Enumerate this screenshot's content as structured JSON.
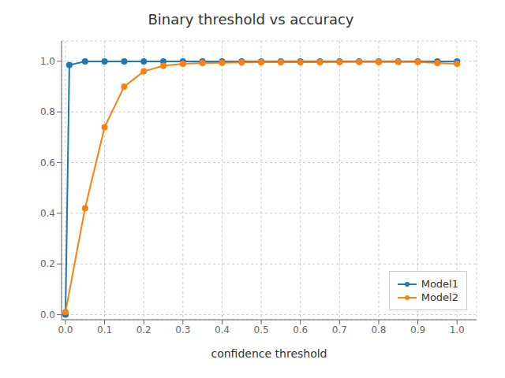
{
  "chart_data": {
    "type": "line",
    "title": "Binary threshold vs accuracy",
    "xlabel": "confidence threshold",
    "series": [
      {
        "name": "Model1",
        "color": "#1f77b4",
        "marker": "circle",
        "x": [
          0.0,
          0.01,
          0.05,
          0.1,
          0.15,
          0.2,
          0.25,
          0.3,
          0.35,
          0.4,
          0.45,
          0.5,
          0.55,
          0.6,
          0.65,
          0.7,
          0.75,
          0.8,
          0.85,
          0.9,
          0.95,
          1.0
        ],
        "values": [
          0.0,
          0.985,
          0.999,
          0.999,
          0.999,
          0.999,
          0.999,
          0.999,
          0.999,
          0.999,
          0.999,
          0.999,
          0.999,
          0.999,
          0.999,
          0.999,
          0.999,
          0.999,
          0.999,
          0.999,
          0.999,
          0.999
        ]
      },
      {
        "name": "Model2",
        "color": "#ff7f0e",
        "marker": "circle",
        "x": [
          0.0,
          0.05,
          0.1,
          0.15,
          0.2,
          0.25,
          0.3,
          0.35,
          0.4,
          0.45,
          0.5,
          0.55,
          0.6,
          0.65,
          0.7,
          0.75,
          0.8,
          0.85,
          0.9,
          0.95,
          1.0
        ],
        "values": [
          0.01,
          0.42,
          0.74,
          0.9,
          0.96,
          0.982,
          0.99,
          0.993,
          0.994,
          0.995,
          0.996,
          0.996,
          0.996,
          0.996,
          0.997,
          0.997,
          0.997,
          0.997,
          0.997,
          0.993,
          0.99
        ]
      }
    ],
    "xlim": [
      -0.01,
      1.05
    ],
    "ylim": [
      -0.02,
      1.08
    ],
    "xticks": [
      {
        "value": 0.0,
        "label": "0.0"
      },
      {
        "value": 0.1,
        "label": "0.1"
      },
      {
        "value": 0.2,
        "label": "0.2"
      },
      {
        "value": 0.3,
        "label": "0.3"
      },
      {
        "value": 0.4,
        "label": "0.4"
      },
      {
        "value": 0.5,
        "label": "0.5"
      },
      {
        "value": 0.6,
        "label": "0.6"
      },
      {
        "value": 0.7,
        "label": "0.7"
      },
      {
        "value": 0.8,
        "label": "0.8"
      },
      {
        "value": 0.9,
        "label": "0.9"
      },
      {
        "value": 1.0,
        "label": "1.0"
      }
    ],
    "yticks": [
      {
        "value": 0.0,
        "label": "0.0"
      },
      {
        "value": 0.2,
        "label": "0.2"
      },
      {
        "value": 0.4,
        "label": "0.4"
      },
      {
        "value": 0.6,
        "label": "0.6"
      },
      {
        "value": 0.8,
        "label": "0.8"
      },
      {
        "value": 1.0,
        "label": "1.0"
      }
    ],
    "grid": true,
    "legend": "lower right"
  }
}
